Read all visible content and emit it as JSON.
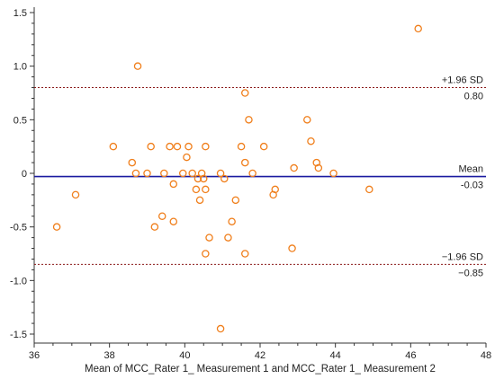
{
  "chart_data": {
    "type": "scatter",
    "title": "",
    "xlabel": "Mean of MCC_Rater 1_ Measurement 1 and MCC_Rater 1_ Measurement 2",
    "ylabel": "",
    "xlim": [
      36,
      48
    ],
    "ylim": [
      -1.55,
      1.55
    ],
    "x_ticks": [
      36,
      38,
      40,
      42,
      44,
      46,
      48
    ],
    "x_tick_labels": [
      "36",
      "38",
      "40",
      "42",
      "44",
      "46",
      "48"
    ],
    "y_ticks": [
      1.5,
      1.0,
      0.5,
      0,
      -0.5,
      -1.0,
      -1.5
    ],
    "y_tick_labels": [
      "1.5",
      "1.0",
      "0.5",
      "0",
      "-0.5",
      "-1.0",
      "-1.5"
    ],
    "grid": false,
    "reference_lines": [
      {
        "id": "upper-loa",
        "y": 0.8,
        "label": "+1.96 SD",
        "value_label": "0.80",
        "style": "dashed",
        "color": "#8b1a1a"
      },
      {
        "id": "mean",
        "y": -0.03,
        "label": "Mean",
        "value_label": "-0.03",
        "style": "solid",
        "color": "#1a1aa0"
      },
      {
        "id": "lower-loa",
        "y": -0.85,
        "label": "−1.96 SD",
        "value_label": "−0.85",
        "style": "dashed",
        "color": "#8b1a1a"
      }
    ],
    "marker_color": "#f07f1c",
    "points": [
      {
        "x": 36.6,
        "y": -0.5
      },
      {
        "x": 37.1,
        "y": -0.2
      },
      {
        "x": 38.1,
        "y": 0.25
      },
      {
        "x": 38.6,
        "y": 0.1
      },
      {
        "x": 38.7,
        "y": 0.0
      },
      {
        "x": 38.75,
        "y": 1.0
      },
      {
        "x": 39.0,
        "y": 0.0
      },
      {
        "x": 39.1,
        "y": 0.25
      },
      {
        "x": 39.2,
        "y": -0.5
      },
      {
        "x": 39.4,
        "y": -0.4
      },
      {
        "x": 39.45,
        "y": 0.0
      },
      {
        "x": 39.6,
        "y": 0.25
      },
      {
        "x": 39.7,
        "y": -0.1
      },
      {
        "x": 39.7,
        "y": -0.45
      },
      {
        "x": 39.8,
        "y": 0.25
      },
      {
        "x": 39.95,
        "y": 0.0
      },
      {
        "x": 40.05,
        "y": 0.15
      },
      {
        "x": 40.1,
        "y": 0.25
      },
      {
        "x": 40.2,
        "y": 0.0
      },
      {
        "x": 40.3,
        "y": -0.15
      },
      {
        "x": 40.35,
        "y": -0.05
      },
      {
        "x": 40.4,
        "y": -0.25
      },
      {
        "x": 40.45,
        "y": 0.0
      },
      {
        "x": 40.5,
        "y": -0.05
      },
      {
        "x": 40.55,
        "y": 0.25
      },
      {
        "x": 40.55,
        "y": -0.15
      },
      {
        "x": 40.55,
        "y": -0.75
      },
      {
        "x": 40.65,
        "y": -0.6
      },
      {
        "x": 40.95,
        "y": 0.0
      },
      {
        "x": 40.95,
        "y": -1.45
      },
      {
        "x": 41.05,
        "y": -0.05
      },
      {
        "x": 41.15,
        "y": -0.6
      },
      {
        "x": 41.25,
        "y": -0.45
      },
      {
        "x": 41.35,
        "y": -0.25
      },
      {
        "x": 41.5,
        "y": 0.25
      },
      {
        "x": 41.6,
        "y": 0.1
      },
      {
        "x": 41.6,
        "y": 0.75
      },
      {
        "x": 41.6,
        "y": -0.75
      },
      {
        "x": 41.7,
        "y": 0.5
      },
      {
        "x": 41.8,
        "y": 0.0
      },
      {
        "x": 42.1,
        "y": 0.25
      },
      {
        "x": 42.35,
        "y": -0.2
      },
      {
        "x": 42.4,
        "y": -0.15
      },
      {
        "x": 42.85,
        "y": -0.7
      },
      {
        "x": 42.9,
        "y": 0.05
      },
      {
        "x": 43.25,
        "y": 0.5
      },
      {
        "x": 43.35,
        "y": 0.3
      },
      {
        "x": 43.5,
        "y": 0.1
      },
      {
        "x": 43.55,
        "y": 0.05
      },
      {
        "x": 43.95,
        "y": 0.0
      },
      {
        "x": 44.9,
        "y": -0.15
      },
      {
        "x": 46.2,
        "y": 1.35
      }
    ]
  }
}
